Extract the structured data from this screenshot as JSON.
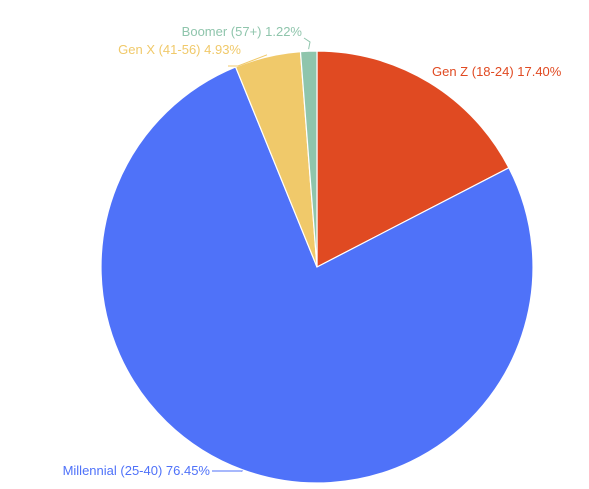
{
  "chart_data": {
    "type": "pie",
    "slices": [
      {
        "label": "Gen Z (18-24) 17.40%",
        "value": 17.4,
        "color": "#e04a22"
      },
      {
        "label": "Millennial (25-40) 76.45%",
        "value": 76.45,
        "color": "#4f72f9"
      },
      {
        "label": "Gen X (41-56) 4.93%",
        "value": 4.93,
        "color": "#f0c96a"
      },
      {
        "label": "Boomer (57+) 1.22%",
        "value": 1.22,
        "color": "#8fc5ac"
      }
    ],
    "start": "12 o'clock",
    "direction": "clockwise",
    "legend": "none",
    "slice_border_color": "#ffffff"
  }
}
